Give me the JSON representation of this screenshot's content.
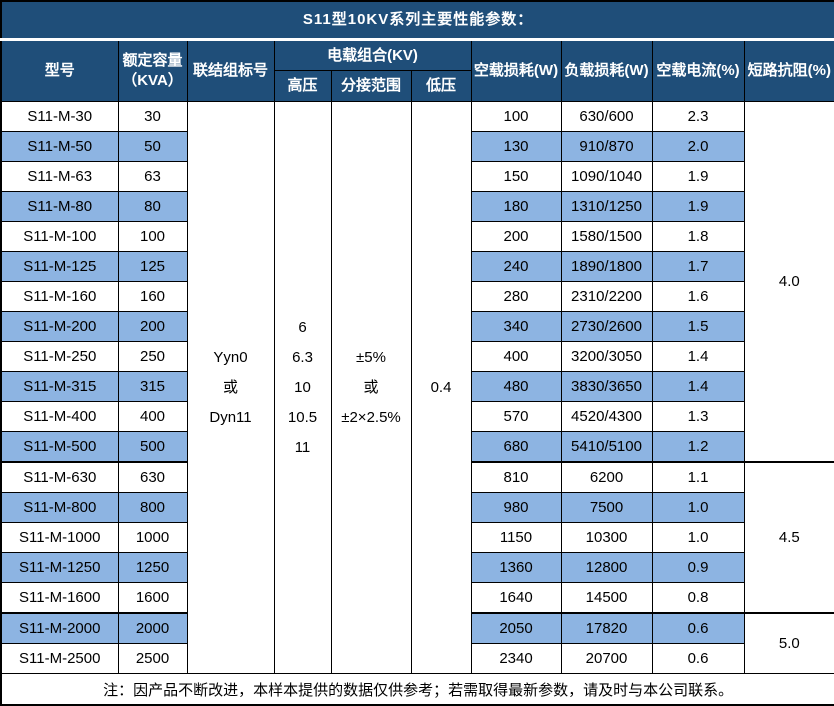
{
  "title": "S11型10KV系列主要性能参数：",
  "columns": {
    "model": "型号",
    "capacity": "额定容量\n（KVA）",
    "connection": "联结组标号",
    "voltage_combo": "电载组合(KV)",
    "hv": "高压",
    "tap_range": "分接范围",
    "lv": "低压",
    "no_load_loss": "空载损耗(W)",
    "load_loss": "负载损耗(W)",
    "no_load_current": "空载电流(%)",
    "impedance": "短路抗阻(%)"
  },
  "shared": {
    "connection": "Yyn0\n或\nDyn11",
    "hv": "6\n6.3\n10\n10.5\n11",
    "tap_range": "±5%\n或\n±2×2.5%",
    "lv": "0.4"
  },
  "rows": [
    {
      "model": "S11-M-30",
      "capacity": "30",
      "no_load_loss": "100",
      "load_loss": "630/600",
      "no_load_current": "2.3"
    },
    {
      "model": "S11-M-50",
      "capacity": "50",
      "no_load_loss": "130",
      "load_loss": "910/870",
      "no_load_current": "2.0"
    },
    {
      "model": "S11-M-63",
      "capacity": "63",
      "no_load_loss": "150",
      "load_loss": "1090/1040",
      "no_load_current": "1.9"
    },
    {
      "model": "S11-M-80",
      "capacity": "80",
      "no_load_loss": "180",
      "load_loss": "1310/1250",
      "no_load_current": "1.9"
    },
    {
      "model": "S11-M-100",
      "capacity": "100",
      "no_load_loss": "200",
      "load_loss": "1580/1500",
      "no_load_current": "1.8"
    },
    {
      "model": "S11-M-125",
      "capacity": "125",
      "no_load_loss": "240",
      "load_loss": "1890/1800",
      "no_load_current": "1.7"
    },
    {
      "model": "S11-M-160",
      "capacity": "160",
      "no_load_loss": "280",
      "load_loss": "2310/2200",
      "no_load_current": "1.6"
    },
    {
      "model": "S11-M-200",
      "capacity": "200",
      "no_load_loss": "340",
      "load_loss": "2730/2600",
      "no_load_current": "1.5"
    },
    {
      "model": "S11-M-250",
      "capacity": "250",
      "no_load_loss": "400",
      "load_loss": "3200/3050",
      "no_load_current": "1.4"
    },
    {
      "model": "S11-M-315",
      "capacity": "315",
      "no_load_loss": "480",
      "load_loss": "3830/3650",
      "no_load_current": "1.4"
    },
    {
      "model": "S11-M-400",
      "capacity": "400",
      "no_load_loss": "570",
      "load_loss": "4520/4300",
      "no_load_current": "1.3"
    },
    {
      "model": "S11-M-500",
      "capacity": "500",
      "no_load_loss": "680",
      "load_loss": "5410/5100",
      "no_load_current": "1.2"
    },
    {
      "model": "S11-M-630",
      "capacity": "630",
      "no_load_loss": "810",
      "load_loss": "6200",
      "no_load_current": "1.1"
    },
    {
      "model": "S11-M-800",
      "capacity": "800",
      "no_load_loss": "980",
      "load_loss": "7500",
      "no_load_current": "1.0"
    },
    {
      "model": "S11-M-1000",
      "capacity": "1000",
      "no_load_loss": "1150",
      "load_loss": "10300",
      "no_load_current": "1.0"
    },
    {
      "model": "S11-M-1250",
      "capacity": "1250",
      "no_load_loss": "1360",
      "load_loss": "12800",
      "no_load_current": "0.9"
    },
    {
      "model": "S11-M-1600",
      "capacity": "1600",
      "no_load_loss": "1640",
      "load_loss": "14500",
      "no_load_current": "0.8"
    },
    {
      "model": "S11-M-2000",
      "capacity": "2000",
      "no_load_loss": "2050",
      "load_loss": "17820",
      "no_load_current": "0.6"
    },
    {
      "model": "S11-M-2500",
      "capacity": "2500",
      "no_load_loss": "2340",
      "load_loss": "20700",
      "no_load_current": "0.6"
    }
  ],
  "impedance_groups": [
    {
      "value": "4.0",
      "start": 0,
      "span": 12
    },
    {
      "value": "4.5",
      "start": 12,
      "span": 5
    },
    {
      "value": "5.0",
      "start": 17,
      "span": 2
    }
  ],
  "note": "注：因产品不断改进，本样本提供的数据仅供参考；若需取得最新参数，请及时与本公司联系。",
  "colors": {
    "header_bg": "#1F4E79",
    "alt_row_bg": "#8DB4E2",
    "border": "#000000",
    "header_text": "#FFFFFF"
  }
}
